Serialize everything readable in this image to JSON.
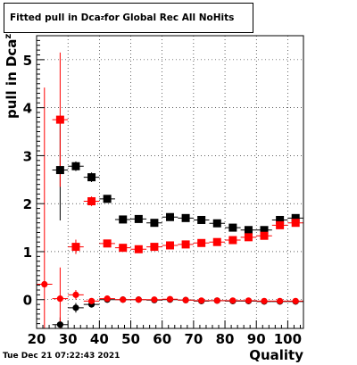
{
  "chart_data": {
    "type": "scatter",
    "title_main": "Fitted pull in Dca",
    "title_sub": "z",
    "title_rest": " for Global Rec All NoHits",
    "xlabel": "Quality",
    "ylabel_main": "pull in Dca",
    "ylabel_sub": "z",
    "xlim": [
      20,
      105
    ],
    "ylim": [
      -0.6,
      5.5
    ],
    "x_ticks": [
      20,
      30,
      40,
      50,
      60,
      70,
      80,
      90,
      100
    ],
    "y_ticks": [
      0,
      1,
      2,
      3,
      4,
      5
    ],
    "grid": true,
    "timestamp": "Tue Dec 21 07:22:43 2021",
    "series": [
      {
        "kind": "black-square",
        "color": "#000000",
        "points": [
          {
            "x": 27.5,
            "y": 2.7,
            "yerr": 1.05
          },
          {
            "x": 32.5,
            "y": 2.78,
            "yerr": 0.1
          },
          {
            "x": 37.5,
            "y": 2.55,
            "yerr": 0.1
          },
          {
            "x": 42.5,
            "y": 2.1,
            "yerr": 0.05
          },
          {
            "x": 47.5,
            "y": 1.67,
            "yerr": 0.04
          },
          {
            "x": 52.5,
            "y": 1.68,
            "yerr": 0.04
          },
          {
            "x": 57.5,
            "y": 1.6,
            "yerr": 0.04
          },
          {
            "x": 62.5,
            "y": 1.72,
            "yerr": 0.04
          },
          {
            "x": 67.5,
            "y": 1.7,
            "yerr": 0.04
          },
          {
            "x": 72.5,
            "y": 1.66,
            "yerr": 0.04
          },
          {
            "x": 77.5,
            "y": 1.59,
            "yerr": 0.04
          },
          {
            "x": 82.5,
            "y": 1.5,
            "yerr": 0.04
          },
          {
            "x": 87.5,
            "y": 1.45,
            "yerr": 0.04
          },
          {
            "x": 92.5,
            "y": 1.45,
            "yerr": 0.04
          },
          {
            "x": 97.5,
            "y": 1.66,
            "yerr": 0.04
          },
          {
            "x": 102.5,
            "y": 1.7,
            "yerr": 0.04
          }
        ]
      },
      {
        "kind": "red-square",
        "color": "#ff0000",
        "points": [
          {
            "x": 27.5,
            "y": 3.75,
            "yerr": 1.4
          },
          {
            "x": 32.5,
            "y": 1.1,
            "yerr": 0.15
          },
          {
            "x": 37.5,
            "y": 2.05,
            "yerr": 0.1
          },
          {
            "x": 42.5,
            "y": 1.17,
            "yerr": 0.05
          },
          {
            "x": 47.5,
            "y": 1.08,
            "yerr": 0.04
          },
          {
            "x": 52.5,
            "y": 1.05,
            "yerr": 0.04
          },
          {
            "x": 57.5,
            "y": 1.1,
            "yerr": 0.04
          },
          {
            "x": 62.5,
            "y": 1.13,
            "yerr": 0.04
          },
          {
            "x": 67.5,
            "y": 1.15,
            "yerr": 0.04
          },
          {
            "x": 72.5,
            "y": 1.18,
            "yerr": 0.04
          },
          {
            "x": 77.5,
            "y": 1.2,
            "yerr": 0.04
          },
          {
            "x": 82.5,
            "y": 1.24,
            "yerr": 0.04
          },
          {
            "x": 87.5,
            "y": 1.3,
            "yerr": 0.04
          },
          {
            "x": 92.5,
            "y": 1.33,
            "yerr": 0.04
          },
          {
            "x": 97.5,
            "y": 1.55,
            "yerr": 0.04
          },
          {
            "x": 102.5,
            "y": 1.6,
            "yerr": 0.04
          }
        ]
      },
      {
        "kind": "black-circle",
        "color": "#000000",
        "points": [
          {
            "x": 27.5,
            "y": -0.52,
            "yerr": 0.15
          },
          {
            "x": 32.5,
            "y": -0.17,
            "yerr": 0.1
          },
          {
            "x": 37.5,
            "y": -0.1,
            "yerr": 0.06
          },
          {
            "x": 42.5,
            "y": 0.0,
            "yerr": 0.03
          },
          {
            "x": 47.5,
            "y": 0.0,
            "yerr": 0.02
          },
          {
            "x": 52.5,
            "y": 0.0,
            "yerr": 0.02
          },
          {
            "x": 57.5,
            "y": -0.01,
            "yerr": 0.02
          },
          {
            "x": 62.5,
            "y": 0.0,
            "yerr": 0.02
          },
          {
            "x": 67.5,
            "y": -0.01,
            "yerr": 0.02
          },
          {
            "x": 72.5,
            "y": -0.03,
            "yerr": 0.02
          },
          {
            "x": 77.5,
            "y": -0.02,
            "yerr": 0.02
          },
          {
            "x": 82.5,
            "y": -0.03,
            "yerr": 0.02
          },
          {
            "x": 87.5,
            "y": -0.03,
            "yerr": 0.02
          },
          {
            "x": 92.5,
            "y": -0.04,
            "yerr": 0.02
          },
          {
            "x": 97.5,
            "y": -0.04,
            "yerr": 0.02
          },
          {
            "x": 102.5,
            "y": -0.04,
            "yerr": 0.02
          }
        ]
      },
      {
        "kind": "red-circle",
        "color": "#ff0000",
        "points": [
          {
            "x": 22.5,
            "y": 0.32,
            "yerr": 4.1
          },
          {
            "x": 27.5,
            "y": 0.02,
            "yerr": 0.65
          },
          {
            "x": 32.5,
            "y": 0.1,
            "yerr": 0.1
          },
          {
            "x": 37.5,
            "y": -0.03,
            "yerr": 0.06
          },
          {
            "x": 42.5,
            "y": 0.02,
            "yerr": 0.03
          },
          {
            "x": 47.5,
            "y": 0.0,
            "yerr": 0.02
          },
          {
            "x": 52.5,
            "y": 0.0,
            "yerr": 0.02
          },
          {
            "x": 57.5,
            "y": 0.0,
            "yerr": 0.02
          },
          {
            "x": 62.5,
            "y": 0.01,
            "yerr": 0.02
          },
          {
            "x": 67.5,
            "y": -0.01,
            "yerr": 0.02
          },
          {
            "x": 72.5,
            "y": -0.02,
            "yerr": 0.02
          },
          {
            "x": 77.5,
            "y": -0.02,
            "yerr": 0.02
          },
          {
            "x": 82.5,
            "y": -0.02,
            "yerr": 0.02
          },
          {
            "x": 87.5,
            "y": -0.02,
            "yerr": 0.02
          },
          {
            "x": 92.5,
            "y": -0.03,
            "yerr": 0.02
          },
          {
            "x": 97.5,
            "y": -0.03,
            "yerr": 0.02
          },
          {
            "x": 102.5,
            "y": -0.03,
            "yerr": 0.02
          }
        ]
      }
    ]
  }
}
